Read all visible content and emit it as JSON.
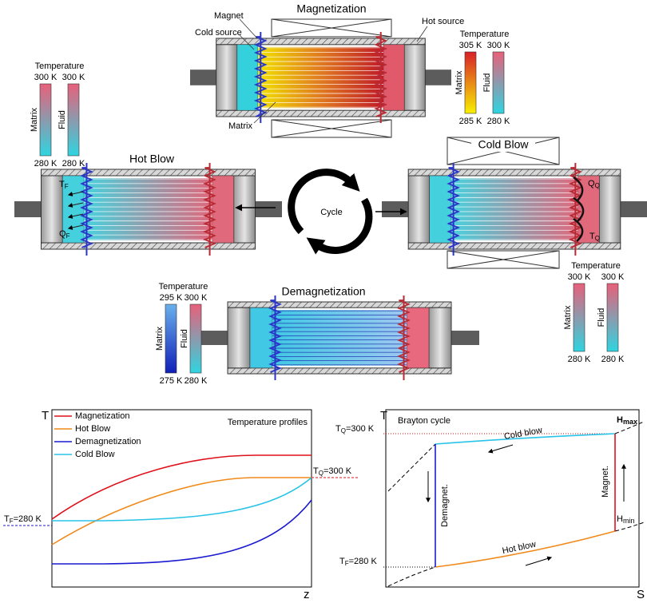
{
  "magnetization": {
    "title": "Magnetization",
    "magnet": "Magnet",
    "cold_source": "Cold source",
    "hot_source": "Hot source",
    "matrix": "Matrix",
    "legend": {
      "heading": "Temperature",
      "matrix_top": "305 K",
      "fluid_top": "300 K",
      "matrix": "Matrix",
      "fluid": "Fluid",
      "matrix_bottom": "285 K",
      "fluid_bottom": "280 K"
    }
  },
  "hot_blow": {
    "title": "Hot Blow",
    "temperature": {
      "main": "T",
      "sub": "F"
    },
    "heat": {
      "main": "Q",
      "sub": "F"
    },
    "legend": {
      "heading": "Temperature",
      "matrix_top": "300 K",
      "fluid_top": "300 K",
      "matrix": "Matrix",
      "fluid": "Fluid",
      "matrix_bottom": "280 K",
      "fluid_bottom": "280 K"
    }
  },
  "cycle": "Cycle",
  "cold_blow": {
    "title": "Cold Blow",
    "heat": {
      "main": "Q",
      "sub": "Q"
    },
    "temperature": {
      "main": "T",
      "sub": "Q"
    },
    "legend": {
      "heading": "Temperature",
      "matrix_top": "300 K",
      "fluid_top": "300 K",
      "matrix": "Matrix",
      "fluid": "Fluid",
      "matrix_bottom": "280 K",
      "fluid_bottom": "280 K"
    }
  },
  "demagnetization": {
    "title": "Demagnetization",
    "legend": {
      "heading": "Temperature",
      "matrix_top": "295 K",
      "fluid_top": "300 K",
      "matrix": "Matrix",
      "fluid": "Fluid",
      "matrix_bottom": "275 K",
      "fluid_bottom": "280 K"
    }
  },
  "temperature_profiles": {
    "title": "Temperature profiles",
    "y_axis": "T",
    "x_axis": "z",
    "legend": [
      "Magnetization",
      "Hot Blow",
      "Demagnetization",
      "Cold Blow"
    ],
    "hot_level": {
      "main": "T",
      "sub": "Q",
      "rest": "=300 K"
    },
    "cold_level": {
      "main": "T",
      "sub": "F",
      "rest": "=280 K"
    }
  },
  "brayton_cycle": {
    "title": "Brayton cycle",
    "y_axis": "T",
    "x_axis": "S",
    "h_max": {
      "main": "H",
      "sub": "max"
    },
    "h_min": {
      "main": "H",
      "sub": "min"
    },
    "hot_level": {
      "main": "T",
      "sub": "Q",
      "rest": "=300 K"
    },
    "cold_level": {
      "main": "T",
      "sub": "F",
      "rest": "=280 K"
    },
    "cold_blow": "Cold blow",
    "hot_blow": "Hot blow",
    "magnetization": "Magnet.",
    "demagnetization": "Demagnet."
  }
}
